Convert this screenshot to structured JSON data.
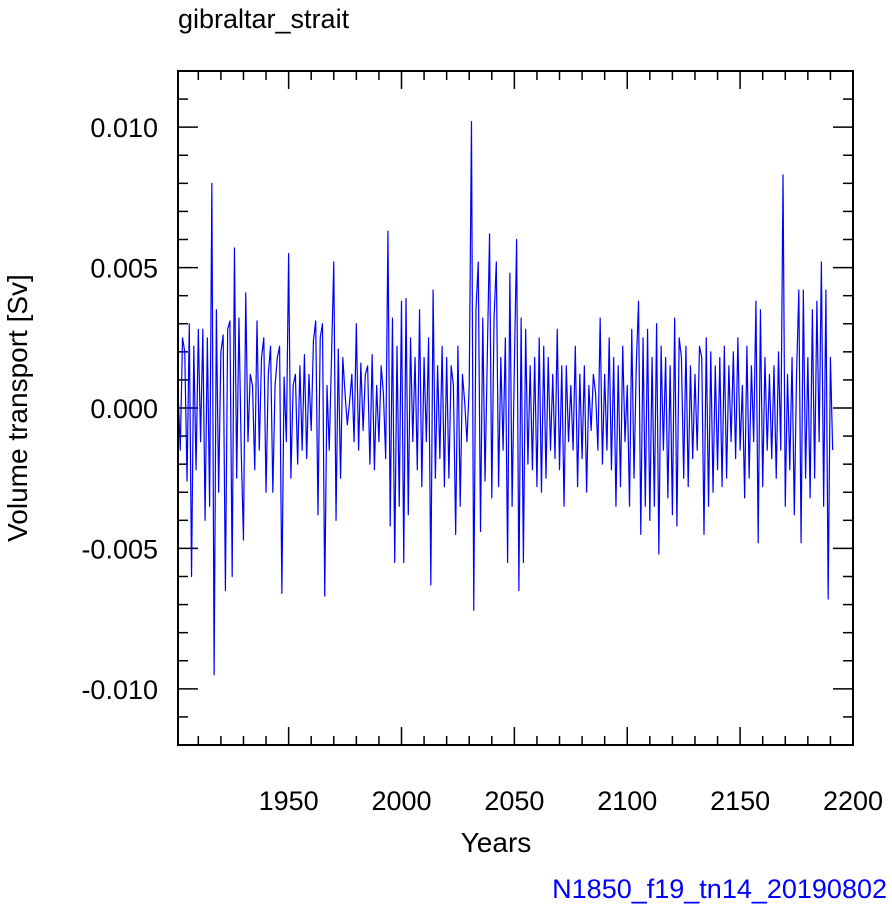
{
  "chart_data": {
    "type": "line",
    "title": "gibraltar_strait",
    "xlabel": "Years",
    "ylabel": "Volume transport [Sv]",
    "xlim": [
      1901,
      2200
    ],
    "ylim": [
      -0.012,
      0.012
    ],
    "x_ticks": [
      1950,
      2000,
      2050,
      2100,
      2150,
      2200
    ],
    "x_tick_labels": [
      "1950",
      "2000",
      "2050",
      "2100",
      "2150",
      "2200"
    ],
    "y_ticks": [
      0.01,
      0.005,
      0.0,
      -0.005,
      -0.01
    ],
    "y_tick_labels": [
      "0.010",
      "0.005",
      "0.000",
      "-0.005",
      "-0.010"
    ],
    "grid": false,
    "series": [
      {
        "color": "#0000ff",
        "x_start": 1901,
        "x_step": 1,
        "values": [
          0.0007,
          -0.0015,
          0.0025,
          0.002,
          -0.0026,
          0.003,
          -0.006,
          0.0022,
          -0.0022,
          0.0028,
          -0.0012,
          0.0028,
          -0.004,
          0.0025,
          -0.0035,
          0.008,
          -0.0095,
          0.0035,
          -0.003,
          0.002,
          0.0026,
          -0.0065,
          0.0028,
          0.0031,
          -0.006,
          0.0057,
          -0.0025,
          0.0032,
          -0.0015,
          -0.0047,
          0.0041,
          -0.0012,
          0.0012,
          0.0008,
          -0.0022,
          0.0031,
          -0.0015,
          0.0018,
          0.0025,
          -0.003,
          0.0012,
          0.0022,
          -0.003,
          0.0008,
          0.0018,
          0.0022,
          -0.0066,
          0.0011,
          -0.0012,
          0.0055,
          -0.0025,
          0.0008,
          0.0012,
          -0.002,
          0.0015,
          -0.0015,
          0.0019,
          -0.0018,
          0.0012,
          -0.0008,
          0.0024,
          0.0031,
          -0.0038,
          0.0025,
          0.003,
          -0.0067,
          0.0008,
          -0.0015,
          0.0018,
          0.0052,
          -0.004,
          0.0021,
          -0.0025,
          0.0018,
          0.0005,
          -0.0006,
          0.0002,
          0.0012,
          -0.0012,
          0.003,
          -0.0015,
          0.0016,
          -0.0008,
          0.0012,
          0.0015,
          -0.002,
          0.0019,
          -0.0022,
          0.0008,
          -0.0012,
          0.0015,
          0.0005,
          -0.0018,
          0.0063,
          -0.0042,
          0.0032,
          -0.0055,
          0.0022,
          -0.0035,
          0.0038,
          -0.0055,
          0.0039,
          -0.0038,
          0.0025,
          -0.0012,
          0.0018,
          -0.0022,
          0.0035,
          -0.0028,
          0.0018,
          -0.0012,
          0.0025,
          -0.0063,
          0.0042,
          -0.0025,
          0.0015,
          -0.0018,
          0.0022,
          -0.0028,
          0.0018,
          -0.0025,
          0.0015,
          0.0008,
          -0.0045,
          0.0022,
          -0.0035,
          0.0012,
          0.0002,
          -0.0012,
          0.0008,
          0.0102,
          -0.0072,
          0.0035,
          0.0052,
          -0.0044,
          0.0032,
          -0.0026,
          0.0018,
          0.0062,
          -0.0032,
          0.0032,
          0.0052,
          -0.0028,
          0.0018,
          -0.0015,
          0.0025,
          -0.0055,
          0.0048,
          -0.0035,
          0.0015,
          0.006,
          -0.0065,
          0.0032,
          -0.0055,
          0.0028,
          -0.002,
          0.0015,
          -0.0022,
          0.0018,
          -0.0028,
          0.0025,
          -0.003,
          0.0022,
          -0.0025,
          0.0018,
          -0.0015,
          0.0012,
          -0.0018,
          0.0028,
          -0.0022,
          0.0015,
          -0.0035,
          0.0015,
          -0.0012,
          0.0008,
          -0.0015,
          0.0022,
          -0.0028,
          0.0012,
          -0.0018,
          0.0015,
          -0.003,
          0.0008,
          -0.0008,
          0.0012,
          0.0005,
          -0.0015,
          0.0032,
          -0.002,
          0.0012,
          -0.0015,
          0.0025,
          -0.0022,
          0.0018,
          -0.0035,
          0.0015,
          -0.0028,
          0.0022,
          -0.0012,
          0.0008,
          -0.0035,
          0.0028,
          -0.0025,
          0.0015,
          0.0038,
          -0.0045,
          0.0025,
          -0.0035,
          0.0028,
          -0.004,
          0.0018,
          -0.0035,
          0.003,
          -0.0052,
          0.0022,
          -0.0015,
          0.0018,
          -0.0032,
          0.0015,
          -0.0038,
          0.0032,
          -0.0042,
          0.0025,
          0.0018,
          -0.0025,
          0.0022,
          -0.0028,
          0.0015,
          -0.0018,
          0.0012,
          -0.0015,
          0.0022,
          0.0018,
          -0.0045,
          0.0025,
          -0.0035,
          0.002,
          -0.003,
          0.0015,
          -0.0022,
          0.0018,
          -0.0028,
          0.0022,
          -0.0025,
          0.0015,
          -0.0012,
          0.002,
          -0.0018,
          0.0025,
          -0.0015,
          0.0008,
          -0.0032,
          0.0022,
          -0.0025,
          0.0015,
          -0.0012,
          0.0038,
          -0.0048,
          0.0035,
          -0.0028,
          0.0018,
          -0.0015,
          0.0012,
          -0.0018,
          0.0015,
          -0.0025,
          0.002,
          -0.0015,
          0.0083,
          -0.0035,
          0.0012,
          -0.0022,
          0.0018,
          -0.0038,
          0.0012,
          0.0042,
          -0.0048,
          0.0042,
          -0.0025,
          0.0018,
          -0.0032,
          0.0035,
          -0.0025,
          0.0038,
          -0.0012,
          0.0052,
          -0.0035,
          0.0042,
          -0.0068,
          0.0018,
          -0.0015
        ]
      }
    ]
  },
  "caseid": "N1850_f19_tn14_20190802"
}
